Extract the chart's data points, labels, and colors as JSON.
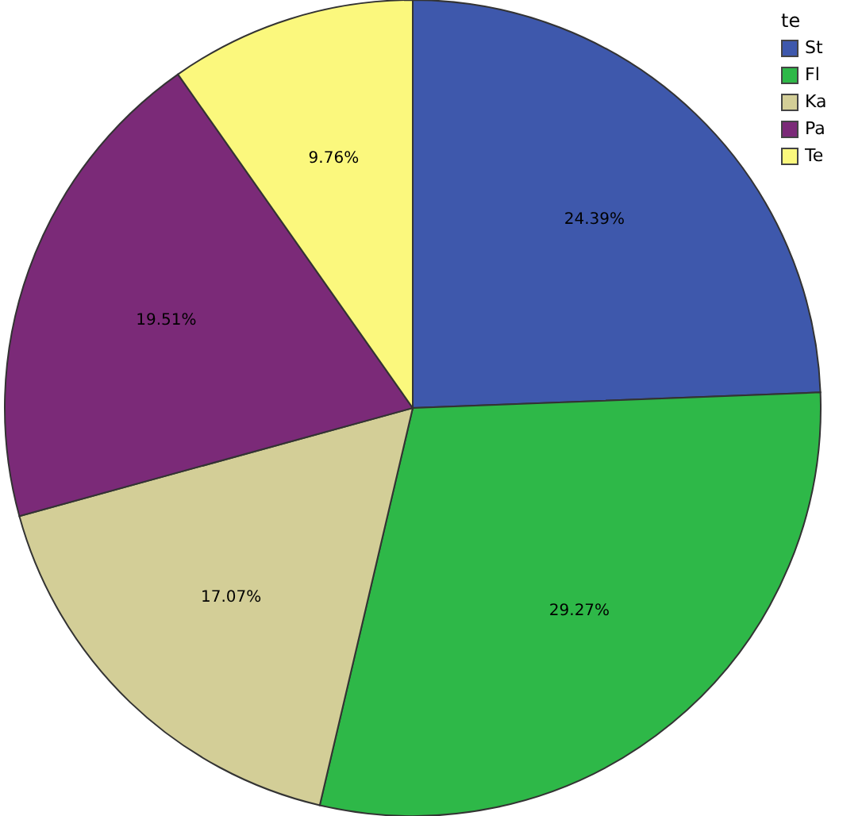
{
  "chart_data": {
    "type": "pie",
    "legend_title": "te",
    "legend": "top right",
    "categories": [
      "St",
      "Fl",
      "Ka",
      "Pa",
      "Te"
    ],
    "values": [
      24.39,
      29.27,
      17.07,
      19.51,
      9.76
    ],
    "value_labels": [
      "24.39%",
      "29.27%",
      "17.07%",
      "19.51%",
      "9.76%"
    ],
    "colors": [
      "#3e58ac",
      "#2eb848",
      "#d3ce97",
      "#7b2a78",
      "#fbf87d"
    ]
  }
}
